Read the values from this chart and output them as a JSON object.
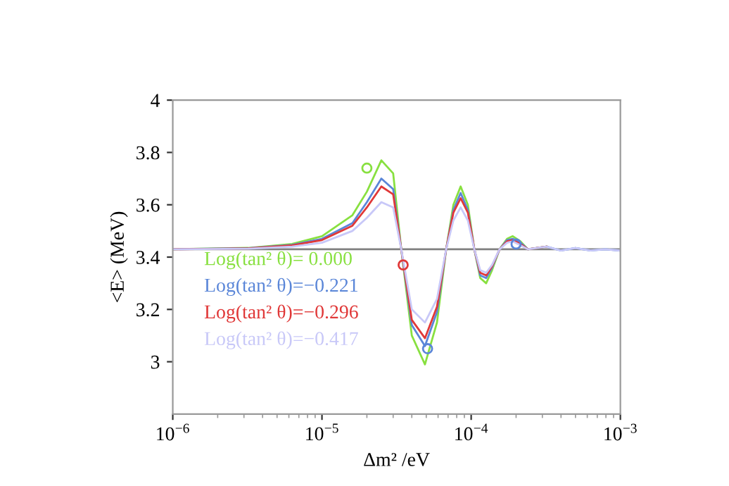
{
  "chart_data": {
    "type": "line",
    "xlabel": "Δm² /eV",
    "ylabel": "<E> (MeV)",
    "log": "x",
    "xlim": [
      1e-06,
      0.001
    ],
    "ylim": [
      2.8,
      4
    ],
    "xticks": [
      {
        "value": 1e-06,
        "label": "10$^{−6}$"
      },
      {
        "value": 1e-05,
        "label": "10$^{−5}$"
      },
      {
        "value": 0.0001,
        "label": "10$^{−4}$"
      },
      {
        "value": 0.001,
        "label": "10$^{−3}$"
      }
    ],
    "yticks": [
      3,
      3.2,
      3.4,
      3.6,
      3.8,
      4
    ],
    "grid": false,
    "legend": "left",
    "marker": "none",
    "line_style": "solid",
    "x": [
      1e-06,
      3.2e-06,
      6.3e-06,
      1e-05,
      1.6e-05,
      2e-05,
      2.5e-05,
      3e-05,
      3.4e-05,
      4e-05,
      4.9e-05,
      5.9e-05,
      6.8e-05,
      7.6e-05,
      8.5e-05,
      9.5e-05,
      0.000105,
      0.000115,
      0.000126,
      0.000138,
      0.000155,
      0.000174,
      0.00019,
      0.000214,
      0.00024,
      0.00032,
      0.0004,
      0.0005,
      0.00063,
      0.00079,
      0.001
    ],
    "series": [
      {
        "name": "Log(tan² θ)= 0.000",
        "color": "#88e040",
        "values": [
          3.43,
          3.435,
          3.45,
          3.48,
          3.56,
          3.65,
          3.77,
          3.72,
          3.43,
          3.1,
          2.99,
          3.15,
          3.43,
          3.6,
          3.67,
          3.6,
          3.43,
          3.32,
          3.3,
          3.35,
          3.43,
          3.47,
          3.48,
          3.46,
          3.43,
          3.44,
          null,
          null,
          null,
          null,
          null
        ]
      },
      {
        "name": "Log(tan² θ)=−0.221",
        "color": "#5a86d8",
        "values": [
          3.43,
          3.434,
          3.447,
          3.47,
          3.53,
          3.61,
          3.7,
          3.66,
          3.43,
          3.14,
          3.06,
          3.19,
          3.43,
          3.58,
          3.645,
          3.58,
          3.43,
          3.33,
          3.32,
          3.36,
          3.43,
          3.465,
          3.47,
          3.455,
          3.43,
          3.44,
          3.425,
          3.435,
          3.425,
          3.43,
          3.425
        ]
      },
      {
        "name": "Log(tan² θ)=−0.296",
        "color": "#e03838",
        "values": [
          3.43,
          3.433,
          3.445,
          3.465,
          3.52,
          3.59,
          3.67,
          3.64,
          3.43,
          3.16,
          3.09,
          3.21,
          3.43,
          3.57,
          3.625,
          3.57,
          3.43,
          3.34,
          3.33,
          3.365,
          3.43,
          3.46,
          3.465,
          3.45,
          3.43,
          3.44,
          null,
          null,
          null,
          null,
          null
        ]
      },
      {
        "name": "Log(tan² θ)=−0.417",
        "color": "#c8c8f8",
        "values": [
          3.43,
          3.432,
          3.44,
          3.455,
          3.5,
          3.55,
          3.61,
          3.59,
          3.43,
          3.2,
          3.15,
          3.24,
          3.43,
          3.54,
          3.59,
          3.54,
          3.43,
          3.35,
          3.34,
          3.37,
          3.43,
          3.455,
          3.46,
          3.445,
          3.43,
          3.44,
          3.425,
          3.435,
          3.425,
          3.43,
          3.425
        ]
      },
      {
        "type": "scatter",
        "marker": "circle",
        "color": "#88e040",
        "x": [
          2e-05
        ],
        "values": [
          3.74
        ]
      },
      {
        "type": "scatter",
        "marker": "circle",
        "color": "#e03838",
        "x": [
          3.5e-05
        ],
        "values": [
          3.37
        ]
      },
      {
        "type": "scatter",
        "marker": "circle",
        "color": "#5a86d8",
        "x": [
          5.1e-05,
          0.0002
        ],
        "values": [
          3.05,
          3.45
        ]
      }
    ],
    "ref_lines": [
      {
        "axis": "y",
        "value": 3.43,
        "color": "#808080"
      }
    ]
  }
}
